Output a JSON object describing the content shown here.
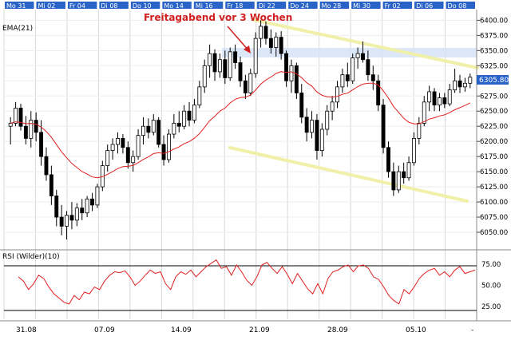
{
  "chart_data": {
    "type": "candlestick",
    "price_panel": {
      "indicator_label": "EMA(21)",
      "ylim": [
        6025,
        6415
      ],
      "y_ticks": [
        "6050.00",
        "6075.00",
        "6100.00",
        "6125.00",
        "6150.00",
        "6175.00",
        "6200.00",
        "6225.00",
        "6250.00",
        "6275.00",
        "6300.00",
        "6325.00",
        "6350.00",
        "6375.00",
        "6400.00"
      ],
      "last_price_label": "6305.80",
      "annotation": "Freitagabend vor 3 Wochen",
      "colors": {
        "up": "#ffffff",
        "down": "#000000",
        "ema": "#e02020",
        "channel": "#f0f0a8",
        "band": "#d6e4f7",
        "annotation": "#d02020",
        "last_price": "#2a63c8"
      },
      "candles": [
        {
          "o": 6225,
          "h": 6240,
          "l": 6195,
          "c": 6230
        },
        {
          "o": 6230,
          "h": 6265,
          "l": 6225,
          "c": 6255
        },
        {
          "o": 6255,
          "h": 6262,
          "l": 6218,
          "c": 6225
        },
        {
          "o": 6225,
          "h": 6242,
          "l": 6195,
          "c": 6205
        },
        {
          "o": 6205,
          "h": 6250,
          "l": 6190,
          "c": 6235
        },
        {
          "o": 6235,
          "h": 6248,
          "l": 6200,
          "c": 6215
        },
        {
          "o": 6215,
          "h": 6235,
          "l": 6160,
          "c": 6175
        },
        {
          "o": 6175,
          "h": 6190,
          "l": 6135,
          "c": 6145
        },
        {
          "o": 6145,
          "h": 6160,
          "l": 6095,
          "c": 6110
        },
        {
          "o": 6110,
          "h": 6120,
          "l": 6060,
          "c": 6075
        },
        {
          "o": 6075,
          "h": 6095,
          "l": 6045,
          "c": 6060
        },
        {
          "o": 6060,
          "h": 6085,
          "l": 6038,
          "c": 6078
        },
        {
          "o": 6078,
          "h": 6100,
          "l": 6055,
          "c": 6070
        },
        {
          "o": 6070,
          "h": 6098,
          "l": 6060,
          "c": 6090
        },
        {
          "o": 6090,
          "h": 6105,
          "l": 6070,
          "c": 6082
        },
        {
          "o": 6082,
          "h": 6110,
          "l": 6075,
          "c": 6105
        },
        {
          "o": 6105,
          "h": 6115,
          "l": 6085,
          "c": 6095
        },
        {
          "o": 6095,
          "h": 6130,
          "l": 6090,
          "c": 6125
        },
        {
          "o": 6125,
          "h": 6168,
          "l": 6118,
          "c": 6160
        },
        {
          "o": 6160,
          "h": 6195,
          "l": 6150,
          "c": 6185
        },
        {
          "o": 6185,
          "h": 6205,
          "l": 6170,
          "c": 6195
        },
        {
          "o": 6195,
          "h": 6215,
          "l": 6180,
          "c": 6205
        },
        {
          "o": 6205,
          "h": 6212,
          "l": 6180,
          "c": 6190
        },
        {
          "o": 6190,
          "h": 6200,
          "l": 6155,
          "c": 6165
        },
        {
          "o": 6165,
          "h": 6185,
          "l": 6150,
          "c": 6175
        },
        {
          "o": 6175,
          "h": 6220,
          "l": 6170,
          "c": 6210
        },
        {
          "o": 6210,
          "h": 6240,
          "l": 6195,
          "c": 6225
        },
        {
          "o": 6225,
          "h": 6238,
          "l": 6205,
          "c": 6215
        },
        {
          "o": 6215,
          "h": 6245,
          "l": 6210,
          "c": 6235
        },
        {
          "o": 6235,
          "h": 6240,
          "l": 6190,
          "c": 6195
        },
        {
          "o": 6195,
          "h": 6210,
          "l": 6160,
          "c": 6170
        },
        {
          "o": 6170,
          "h": 6220,
          "l": 6165,
          "c": 6212
        },
        {
          "o": 6212,
          "h": 6245,
          "l": 6205,
          "c": 6230
        },
        {
          "o": 6230,
          "h": 6250,
          "l": 6215,
          "c": 6225
        },
        {
          "o": 6225,
          "h": 6260,
          "l": 6220,
          "c": 6250
        },
        {
          "o": 6250,
          "h": 6265,
          "l": 6225,
          "c": 6235
        },
        {
          "o": 6235,
          "h": 6270,
          "l": 6230,
          "c": 6260
        },
        {
          "o": 6260,
          "h": 6300,
          "l": 6255,
          "c": 6290
        },
        {
          "o": 6290,
          "h": 6335,
          "l": 6280,
          "c": 6325
        },
        {
          "o": 6325,
          "h": 6360,
          "l": 6305,
          "c": 6345
        },
        {
          "o": 6345,
          "h": 6352,
          "l": 6300,
          "c": 6315
        },
        {
          "o": 6315,
          "h": 6345,
          "l": 6305,
          "c": 6335
        },
        {
          "o": 6335,
          "h": 6350,
          "l": 6295,
          "c": 6305
        },
        {
          "o": 6305,
          "h": 6355,
          "l": 6300,
          "c": 6348
        },
        {
          "o": 6348,
          "h": 6360,
          "l": 6320,
          "c": 6330
        },
        {
          "o": 6330,
          "h": 6340,
          "l": 6290,
          "c": 6300
        },
        {
          "o": 6300,
          "h": 6310,
          "l": 6270,
          "c": 6280
        },
        {
          "o": 6280,
          "h": 6320,
          "l": 6275,
          "c": 6312
        },
        {
          "o": 6312,
          "h": 6380,
          "l": 6305,
          "c": 6370
        },
        {
          "o": 6370,
          "h": 6400,
          "l": 6355,
          "c": 6390
        },
        {
          "o": 6390,
          "h": 6398,
          "l": 6360,
          "c": 6370
        },
        {
          "o": 6370,
          "h": 6385,
          "l": 6345,
          "c": 6355
        },
        {
          "o": 6355,
          "h": 6380,
          "l": 6340,
          "c": 6372
        },
        {
          "o": 6372,
          "h": 6382,
          "l": 6335,
          "c": 6345
        },
        {
          "o": 6345,
          "h": 6350,
          "l": 6290,
          "c": 6300
        },
        {
          "o": 6300,
          "h": 6335,
          "l": 6280,
          "c": 6325
        },
        {
          "o": 6325,
          "h": 6330,
          "l": 6270,
          "c": 6280
        },
        {
          "o": 6280,
          "h": 6295,
          "l": 6230,
          "c": 6240
        },
        {
          "o": 6240,
          "h": 6255,
          "l": 6200,
          "c": 6215
        },
        {
          "o": 6215,
          "h": 6250,
          "l": 6205,
          "c": 6235
        },
        {
          "o": 6235,
          "h": 6245,
          "l": 6170,
          "c": 6185
        },
        {
          "o": 6185,
          "h": 6230,
          "l": 6175,
          "c": 6220
        },
        {
          "o": 6220,
          "h": 6260,
          "l": 6210,
          "c": 6250
        },
        {
          "o": 6250,
          "h": 6275,
          "l": 6235,
          "c": 6265
        },
        {
          "o": 6265,
          "h": 6300,
          "l": 6255,
          "c": 6290
        },
        {
          "o": 6290,
          "h": 6320,
          "l": 6280,
          "c": 6310
        },
        {
          "o": 6310,
          "h": 6330,
          "l": 6290,
          "c": 6300
        },
        {
          "o": 6300,
          "h": 6345,
          "l": 6295,
          "c": 6338
        },
        {
          "o": 6338,
          "h": 6355,
          "l": 6320,
          "c": 6345
        },
        {
          "o": 6345,
          "h": 6365,
          "l": 6330,
          "c": 6335
        },
        {
          "o": 6335,
          "h": 6350,
          "l": 6300,
          "c": 6310
        },
        {
          "o": 6310,
          "h": 6325,
          "l": 6285,
          "c": 6300
        },
        {
          "o": 6300,
          "h": 6310,
          "l": 6250,
          "c": 6260
        },
        {
          "o": 6260,
          "h": 6270,
          "l": 6180,
          "c": 6190
        },
        {
          "o": 6190,
          "h": 6200,
          "l": 6140,
          "c": 6150
        },
        {
          "o": 6150,
          "h": 6165,
          "l": 6110,
          "c": 6120
        },
        {
          "o": 6120,
          "h": 6160,
          "l": 6115,
          "c": 6150
        },
        {
          "o": 6150,
          "h": 6165,
          "l": 6130,
          "c": 6140
        },
        {
          "o": 6140,
          "h": 6175,
          "l": 6135,
          "c": 6165
        },
        {
          "o": 6165,
          "h": 6215,
          "l": 6160,
          "c": 6205
        },
        {
          "o": 6205,
          "h": 6240,
          "l": 6195,
          "c": 6230
        },
        {
          "o": 6230,
          "h": 6275,
          "l": 6225,
          "c": 6265
        },
        {
          "o": 6265,
          "h": 6292,
          "l": 6250,
          "c": 6282
        },
        {
          "o": 6282,
          "h": 6288,
          "l": 6250,
          "c": 6260
        },
        {
          "o": 6260,
          "h": 6280,
          "l": 6250,
          "c": 6272
        },
        {
          "o": 6272,
          "h": 6280,
          "l": 6255,
          "c": 6262
        },
        {
          "o": 6262,
          "h": 6295,
          "l": 6258,
          "c": 6285
        },
        {
          "o": 6285,
          "h": 6320,
          "l": 6280,
          "c": 6300
        },
        {
          "o": 6300,
          "h": 6310,
          "l": 6280,
          "c": 6290
        },
        {
          "o": 6290,
          "h": 6305,
          "l": 6282,
          "c": 6296
        },
        {
          "o": 6296,
          "h": 6312,
          "l": 6288,
          "c": 6306
        }
      ]
    },
    "rsi_panel": {
      "label": "RSI (Wilder)(10)",
      "ylim": [
        10,
        90
      ],
      "y_ticks": [
        "75.00",
        "50.00",
        "25.00"
      ],
      "color": "#e02020",
      "values": [
        60,
        55,
        45,
        52,
        62,
        58,
        48,
        40,
        35,
        30,
        28,
        38,
        33,
        42,
        40,
        48,
        45,
        55,
        62,
        66,
        65,
        67,
        60,
        50,
        55,
        62,
        68,
        64,
        66,
        52,
        45,
        60,
        66,
        63,
        68,
        60,
        66,
        72,
        76,
        80,
        70,
        72,
        62,
        74,
        66,
        56,
        50,
        60,
        74,
        77,
        70,
        64,
        72,
        63,
        52,
        64,
        55,
        46,
        40,
        52,
        40,
        58,
        66,
        68,
        72,
        74,
        66,
        73,
        74,
        70,
        60,
        57,
        48,
        38,
        32,
        28,
        45,
        40,
        48,
        58,
        64,
        68,
        70,
        62,
        66,
        60,
        68,
        72,
        64,
        66,
        68
      ]
    },
    "x_tick_labels": [
      "31.08",
      "07.09",
      "14.09",
      "21.09",
      "28.09",
      "05.10",
      "-"
    ],
    "top_day_labels": [
      "Mo 31",
      "Mi 02",
      "Fr 04",
      "Di 08",
      "Do 10",
      "Mo 14",
      "Mi 16",
      "Fr 18",
      "Di 22",
      "Do 24",
      "Mo 28",
      "Mi 30",
      "Fr 02",
      "Di 06",
      "Do 08"
    ]
  }
}
